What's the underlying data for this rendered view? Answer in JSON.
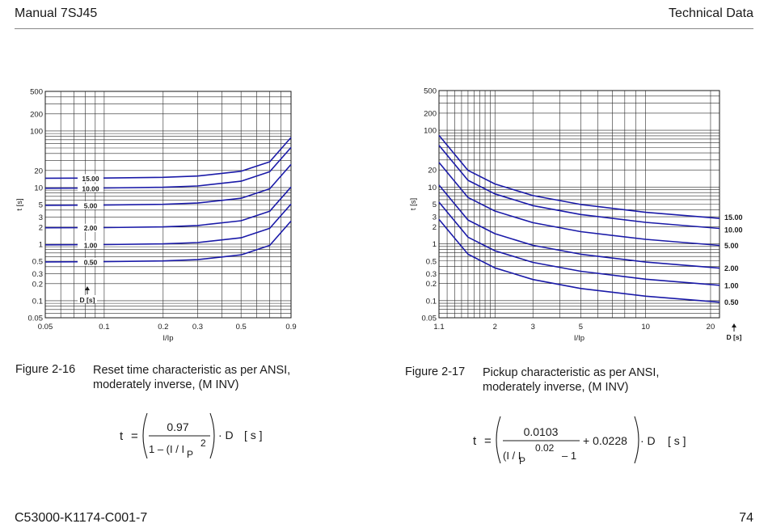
{
  "header": {
    "left": "Manual 7SJ45",
    "right": "Technical Data"
  },
  "footer": {
    "left": "C53000-K1174-C001-7",
    "right": "74"
  },
  "figure1": {
    "number": "Figure 2-16",
    "caption_line1": "Reset time characteristic as per ANSI,",
    "caption_line2": "moderately inverse, (M INV)",
    "formula": {
      "lhs": "t",
      "eq": "=",
      "numerator": "0.97",
      "denominator": "1 – (I / I",
      "sub": "P",
      "exp": "2",
      "tail": "· D",
      "unit": "[ s ]"
    }
  },
  "figure2": {
    "number": "Figure 2-17",
    "caption_line1": "Pickup characteristic as per ANSI,",
    "caption_line2": "moderately inverse, (M INV)",
    "formula": {
      "lhs": "t",
      "eq": "=",
      "numerator": "0.0103",
      "denominator": "(I / I",
      "sub": "P",
      "exp": "0.02",
      "minus": "– 1",
      "plus": "+ 0.0228",
      "tail": "· D",
      "unit": "[ s ]"
    }
  },
  "chart_data": [
    {
      "type": "line",
      "title": "",
      "xlabel": "I/Ip",
      "ylabel": "t [s]",
      "xscale": "log",
      "yscale": "log",
      "xlim": [
        0.05,
        0.9
      ],
      "ylim": [
        0.05,
        500
      ],
      "x_ticks": [
        "0.05",
        "0.1",
        "0.2",
        "0.3",
        "0.5",
        "0.9"
      ],
      "y_ticks": [
        "500",
        "200",
        "100",
        "20",
        "10",
        "5",
        "3",
        "2",
        "1",
        "0.5",
        "0.3",
        "0.2",
        "0.1",
        "0.05"
      ],
      "grid": true,
      "param_label": "D [s]",
      "formula": "t = 0.97 / (1 - (I/Ip)^2) * D",
      "series": [
        {
          "name": "15.00",
          "x": [
            0.05,
            0.1,
            0.2,
            0.3,
            0.5,
            0.7,
            0.9
          ],
          "values": [
            14.59,
            14.7,
            15.16,
            15.99,
            19.4,
            28.53,
            76.58
          ]
        },
        {
          "name": "10.00",
          "x": [
            0.05,
            0.1,
            0.2,
            0.3,
            0.5,
            0.7,
            0.9
          ],
          "values": [
            9.72,
            9.8,
            10.1,
            10.66,
            12.93,
            19.02,
            51.05
          ]
        },
        {
          "name": "5.00",
          "x": [
            0.05,
            0.1,
            0.2,
            0.3,
            0.5,
            0.7,
            0.9
          ],
          "values": [
            4.86,
            4.9,
            5.05,
            5.33,
            6.47,
            9.51,
            25.53
          ]
        },
        {
          "name": "2.00",
          "x": [
            0.05,
            0.1,
            0.2,
            0.3,
            0.5,
            0.7,
            0.9
          ],
          "values": [
            1.945,
            1.96,
            2.02,
            2.13,
            2.59,
            3.8,
            10.21
          ]
        },
        {
          "name": "1.00",
          "x": [
            0.05,
            0.1,
            0.2,
            0.3,
            0.5,
            0.7,
            0.9
          ],
          "values": [
            0.972,
            0.98,
            1.01,
            1.066,
            1.293,
            1.902,
            5.105
          ]
        },
        {
          "name": "0.50",
          "x": [
            0.05,
            0.1,
            0.2,
            0.3,
            0.5,
            0.7,
            0.9
          ],
          "values": [
            0.486,
            0.49,
            0.505,
            0.533,
            0.647,
            0.951,
            2.553
          ]
        }
      ]
    },
    {
      "type": "line",
      "title": "",
      "xlabel": "I/Ip",
      "ylabel": "t [s]",
      "xscale": "log",
      "yscale": "log",
      "xlim": [
        1.1,
        22
      ],
      "ylim": [
        0.05,
        500
      ],
      "x_ticks": [
        "1.1",
        "2",
        "3",
        "5",
        "10",
        "20"
      ],
      "y_ticks": [
        "500",
        "200",
        "100",
        "20",
        "10",
        "5",
        "3",
        "2",
        "1",
        "0.5",
        "0.3",
        "0.2",
        "0.1",
        "0.05"
      ],
      "grid": true,
      "param_label": "D [s]",
      "formula": "t = (0.0103 / ((I/Ip)^0.02 - 1) + 0.0228) * D",
      "series": [
        {
          "name": "15.00",
          "x": [
            1.1,
            1.5,
            2,
            3,
            5,
            10,
            22
          ],
          "values": [
            81.3,
            19.7,
            11.35,
            7.08,
            4.93,
            3.59,
            2.81
          ]
        },
        {
          "name": "10.00",
          "x": [
            1.1,
            1.5,
            2,
            3,
            5,
            10,
            22
          ],
          "values": [
            54.2,
            13.13,
            7.57,
            4.72,
            3.29,
            2.39,
            1.87
          ]
        },
        {
          "name": "5.00",
          "x": [
            1.1,
            1.5,
            2,
            3,
            5,
            10,
            22
          ],
          "values": [
            27.1,
            6.57,
            3.78,
            2.36,
            1.64,
            1.2,
            0.94
          ]
        },
        {
          "name": "2.00",
          "x": [
            1.1,
            1.5,
            2,
            3,
            5,
            10,
            22
          ],
          "values": [
            10.84,
            2.63,
            1.51,
            0.944,
            0.657,
            0.478,
            0.374
          ]
        },
        {
          "name": "1.00",
          "x": [
            1.1,
            1.5,
            2,
            3,
            5,
            10,
            22
          ],
          "values": [
            5.42,
            1.313,
            0.757,
            0.472,
            0.329,
            0.239,
            0.187
          ]
        },
        {
          "name": "0.50",
          "x": [
            1.1,
            1.5,
            2,
            3,
            5,
            10,
            22
          ],
          "values": [
            2.71,
            0.657,
            0.378,
            0.236,
            0.164,
            0.12,
            0.094
          ]
        }
      ]
    }
  ]
}
